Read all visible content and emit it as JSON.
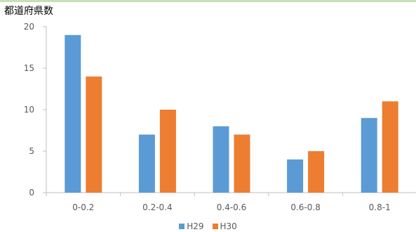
{
  "chart_data": {
    "type": "bar",
    "title": "",
    "ylabel": "都道府県数",
    "xlabel": "",
    "categories": [
      "0-0.2",
      "0.2-0.4",
      "0.4-0.6",
      "0.6-0.8",
      "0.8-1"
    ],
    "ylim": [
      0,
      20
    ],
    "yticks": [
      "0",
      "5",
      "10",
      "15",
      "20"
    ],
    "grid": false,
    "legend_position": "bottom",
    "series": [
      {
        "name": "H29",
        "color": "#5b9bd5",
        "values": [
          19,
          7,
          8,
          4,
          9
        ]
      },
      {
        "name": "H30",
        "color": "#ed7d31",
        "values": [
          14,
          10,
          7,
          5,
          11
        ]
      }
    ]
  }
}
